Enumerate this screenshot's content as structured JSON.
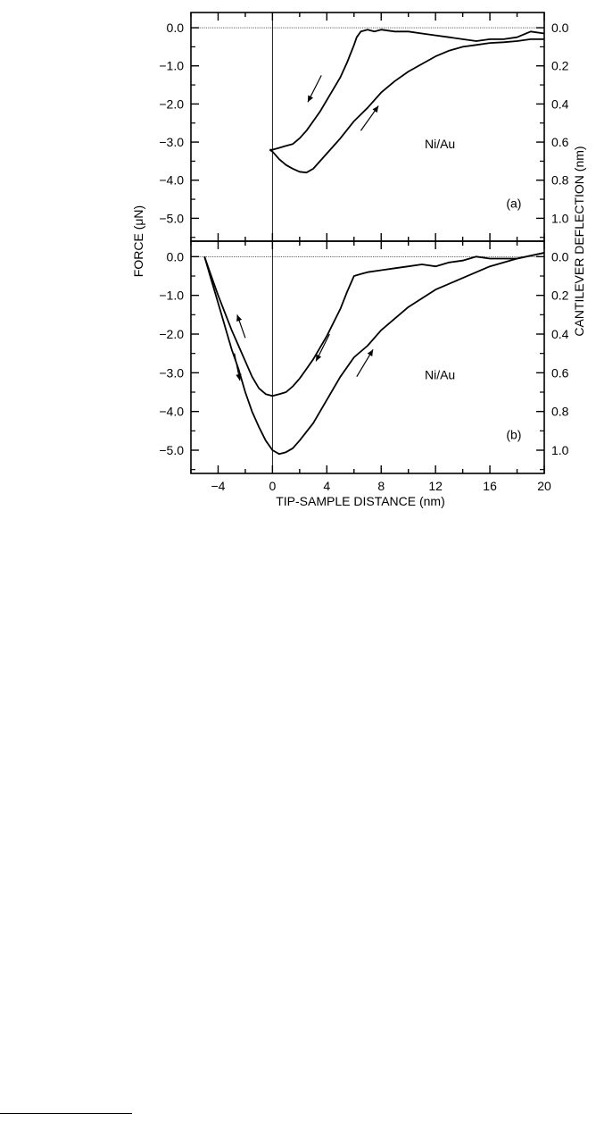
{
  "figure": {
    "left_axis_label": "FORCE (μN)",
    "right_axis_label": "CANTILEVER DEFLECTION (nm)",
    "x_axis_label": "TIP-SAMPLE DISTANCE (nm)"
  },
  "chart_data": [
    {
      "type": "line",
      "panel_label": "(a)",
      "annotation": "Ni/Au",
      "xlabel": "TIP-SAMPLE DISTANCE (nm)",
      "ylabel": "FORCE (μN)",
      "y2label": "CANTILEVER DEFLECTION (nm)",
      "xlim": [
        -6,
        20
      ],
      "ylim": [
        -5.6,
        0.4
      ],
      "y2lim": [
        -0.08,
        1.12
      ],
      "y_ticks": [
        "0.0",
        "−1.0",
        "−2.0",
        "−3.0",
        "−4.0",
        "−5.0"
      ],
      "y2_ticks": [
        "0.0",
        "0.2",
        "0.4",
        "0.6",
        "0.8",
        "1.0"
      ],
      "grid": false,
      "series": [
        {
          "direction": "approach",
          "x": [
            20,
            19,
            18,
            17,
            16,
            15,
            14,
            13,
            12,
            11,
            10,
            9,
            8,
            7.5,
            7,
            6.5,
            6.2,
            6,
            5.5,
            5,
            4.5,
            4,
            3.5,
            3,
            2.5,
            2,
            1.5,
            1,
            0.5,
            0,
            -0.2
          ],
          "y": [
            -0.15,
            -0.1,
            -0.25,
            -0.3,
            -0.3,
            -0.35,
            -0.3,
            -0.25,
            -0.2,
            -0.15,
            -0.1,
            -0.1,
            -0.05,
            -0.1,
            -0.05,
            -0.1,
            -0.25,
            -0.45,
            -0.9,
            -1.3,
            -1.6,
            -1.9,
            -2.2,
            -2.45,
            -2.7,
            -2.9,
            -3.05,
            -3.1,
            -3.15,
            -3.2,
            -3.2
          ]
        },
        {
          "direction": "retract",
          "x": [
            -0.2,
            0,
            0.5,
            1,
            1.5,
            2,
            2.5,
            3,
            3.5,
            4,
            5,
            6,
            7,
            8,
            9,
            10,
            11,
            12,
            13,
            14,
            15,
            16,
            17,
            18,
            19,
            20
          ],
          "y": [
            -3.2,
            -3.25,
            -3.45,
            -3.6,
            -3.7,
            -3.78,
            -3.8,
            -3.7,
            -3.5,
            -3.3,
            -2.9,
            -2.45,
            -2.1,
            -1.7,
            -1.4,
            -1.15,
            -0.95,
            -0.75,
            -0.6,
            -0.5,
            -0.45,
            -0.4,
            -0.38,
            -0.35,
            -0.3,
            -0.3
          ]
        }
      ]
    },
    {
      "type": "line",
      "panel_label": "(b)",
      "annotation": "Ni/Au",
      "xlabel": "TIP-SAMPLE DISTANCE (nm)",
      "ylabel": "FORCE (μN)",
      "y2label": "CANTILEVER DEFLECTION (nm)",
      "xlim": [
        -6,
        20
      ],
      "ylim": [
        -5.6,
        0.4
      ],
      "y2lim": [
        -0.08,
        1.12
      ],
      "x_ticks": [
        "−4",
        "0",
        "4",
        "8",
        "12",
        "16",
        "20"
      ],
      "y_ticks": [
        "0.0",
        "−1.0",
        "−2.0",
        "−3.0",
        "−4.0",
        "−5.0"
      ],
      "y2_ticks": [
        "0.0",
        "0.2",
        "0.4",
        "0.6",
        "0.8",
        "1.0"
      ],
      "grid": false,
      "series": [
        {
          "direction": "approach",
          "x": [
            20,
            18,
            16,
            15,
            14,
            13,
            12,
            11,
            10,
            9,
            8,
            7,
            6.5,
            6,
            5.5,
            5,
            4.5,
            4,
            3.5,
            3,
            2.5,
            2,
            1.5,
            1,
            0.5,
            0,
            -0.5,
            -1,
            -1.5,
            -2,
            -2.5,
            -3,
            -3.5,
            -4,
            -4.5,
            -5
          ],
          "y": [
            0.1,
            -0.05,
            -0.05,
            0.0,
            -0.1,
            -0.15,
            -0.25,
            -0.2,
            -0.25,
            -0.3,
            -0.35,
            -0.4,
            -0.45,
            -0.5,
            -0.9,
            -1.35,
            -1.7,
            -2.05,
            -2.35,
            -2.65,
            -2.9,
            -3.15,
            -3.35,
            -3.5,
            -3.55,
            -3.6,
            -3.55,
            -3.4,
            -3.1,
            -2.7,
            -2.3,
            -1.9,
            -1.45,
            -1.0,
            -0.5,
            0.0
          ]
        },
        {
          "direction": "retract",
          "x": [
            -5,
            -4.5,
            -4,
            -3.5,
            -3,
            -2.5,
            -2,
            -1.5,
            -1,
            -0.5,
            0,
            0.5,
            1,
            1.5,
            2,
            3,
            4,
            5,
            6,
            7,
            8,
            10,
            12,
            14,
            16,
            18,
            20
          ],
          "y": [
            0.0,
            -0.6,
            -1.2,
            -1.8,
            -2.4,
            -2.9,
            -3.5,
            -4.0,
            -4.4,
            -4.75,
            -5.0,
            -5.1,
            -5.05,
            -4.95,
            -4.75,
            -4.3,
            -3.7,
            -3.1,
            -2.6,
            -2.3,
            -1.9,
            -1.3,
            -0.85,
            -0.55,
            -0.25,
            -0.05,
            0.1
          ]
        }
      ]
    }
  ]
}
